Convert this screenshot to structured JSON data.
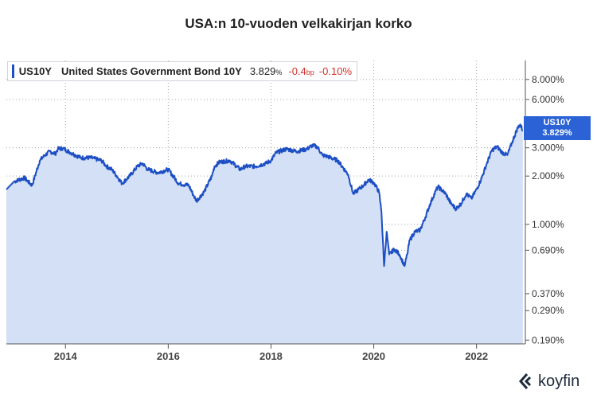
{
  "title": "USA:n 10-vuoden velkakirjan korko",
  "legend": {
    "symbol": "US10Y",
    "name": "United States Government Bond 10Y",
    "value": "3.829",
    "value_unit": "%",
    "change_bp": "-0.4",
    "change_bp_unit": "bp",
    "change_pct": "-0.10",
    "change_pct_unit": "%"
  },
  "badge": {
    "symbol": "US10Y",
    "value": "3.829%"
  },
  "brand": "koyfin",
  "colors": {
    "line": "#1d4fc4",
    "fill": "#d3e0f6",
    "badge": "#2b63d6",
    "negative": "#d1322b"
  },
  "chart_data": {
    "type": "area",
    "scale": "log",
    "title": "USA:n 10-vuoden velkakirjan korko",
    "xlabel": "",
    "ylabel": "",
    "xlim": [
      2012.85,
      2022.95
    ],
    "ylim": [
      0.18,
      10.5
    ],
    "x_ticks": [
      "2014",
      "2016",
      "2018",
      "2020",
      "2022"
    ],
    "y_ticks": [
      "8.000%",
      "6.000%",
      "3.000%",
      "2.000%",
      "1.000%",
      "0.690%",
      "0.370%",
      "0.290%",
      "0.190%"
    ],
    "y_tick_values": [
      8.0,
      6.0,
      3.0,
      2.0,
      1.0,
      0.69,
      0.37,
      0.29,
      0.19
    ],
    "series": [
      {
        "name": "US10Y",
        "x": [
          2012.85,
          2013.0,
          2013.2,
          2013.35,
          2013.5,
          2013.6,
          2013.7,
          2013.8,
          2013.85,
          2013.95,
          2014.1,
          2014.3,
          2014.5,
          2014.7,
          2014.8,
          2014.9,
          2015.0,
          2015.1,
          2015.25,
          2015.4,
          2015.5,
          2015.6,
          2015.8,
          2016.0,
          2016.2,
          2016.4,
          2016.5,
          2016.55,
          2016.7,
          2016.85,
          2016.9,
          2017.0,
          2017.2,
          2017.4,
          2017.5,
          2017.7,
          2017.9,
          2018.0,
          2018.1,
          2018.3,
          2018.5,
          2018.7,
          2018.8,
          2018.9,
          2019.0,
          2019.1,
          2019.3,
          2019.5,
          2019.6,
          2019.7,
          2019.8,
          2019.9,
          2020.0,
          2020.1,
          2020.15,
          2020.2,
          2020.25,
          2020.3,
          2020.4,
          2020.5,
          2020.6,
          2020.65,
          2020.7,
          2020.8,
          2020.9,
          2021.0,
          2021.1,
          2021.2,
          2021.25,
          2021.4,
          2021.5,
          2021.6,
          2021.7,
          2021.8,
          2021.9,
          2022.0,
          2022.1,
          2022.2,
          2022.3,
          2022.4,
          2022.5,
          2022.6,
          2022.7,
          2022.8,
          2022.85,
          2022.9
        ],
        "values": [
          1.65,
          1.85,
          1.95,
          1.75,
          2.5,
          2.7,
          2.85,
          2.75,
          2.95,
          2.98,
          2.8,
          2.6,
          2.6,
          2.5,
          2.3,
          2.2,
          2.0,
          1.8,
          2.0,
          2.3,
          2.4,
          2.2,
          2.1,
          2.2,
          1.8,
          1.75,
          1.5,
          1.4,
          1.6,
          2.0,
          2.3,
          2.45,
          2.5,
          2.2,
          2.3,
          2.3,
          2.4,
          2.5,
          2.8,
          2.95,
          2.85,
          2.95,
          3.1,
          3.05,
          2.7,
          2.65,
          2.5,
          2.05,
          1.55,
          1.65,
          1.75,
          1.9,
          1.82,
          1.6,
          1.2,
          0.55,
          0.9,
          0.65,
          0.7,
          0.65,
          0.55,
          0.65,
          0.8,
          0.9,
          0.92,
          1.1,
          1.35,
          1.6,
          1.72,
          1.55,
          1.35,
          1.25,
          1.35,
          1.55,
          1.45,
          1.65,
          1.95,
          2.4,
          2.9,
          3.05,
          2.8,
          2.7,
          3.3,
          4.0,
          4.2,
          3.829
        ]
      }
    ],
    "last_value": 3.829
  }
}
